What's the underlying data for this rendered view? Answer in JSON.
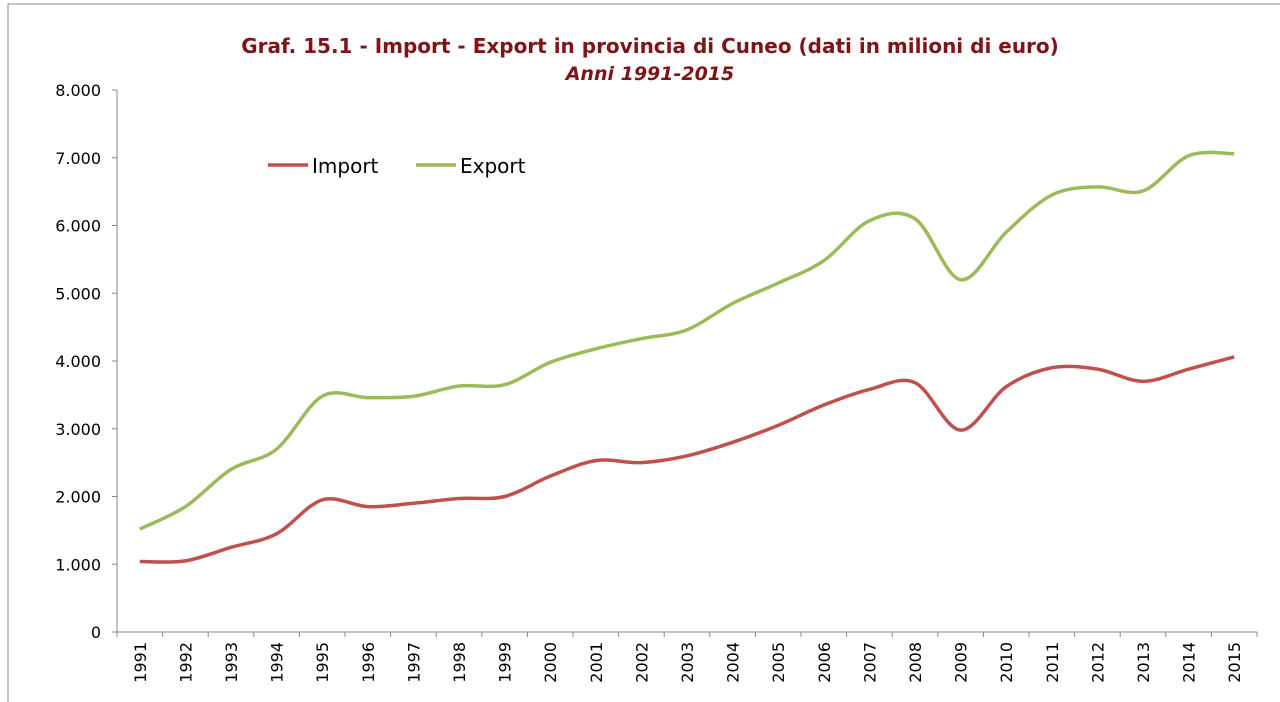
{
  "chart_data": {
    "type": "line",
    "title": "Graf. 15.1 - Import - Export in provincia di Cuneo (dati in milioni di euro)",
    "subtitle": "Anni 1991-2015",
    "categories": [
      "1991",
      "1992",
      "1993",
      "1994",
      "1995",
      "1996",
      "1997",
      "1998",
      "1999",
      "2000",
      "2001",
      "2002",
      "2003",
      "2004",
      "2005",
      "2006",
      "2007",
      "2008",
      "2009",
      "2010",
      "2011",
      "2012",
      "2013",
      "2014",
      "2015"
    ],
    "series": [
      {
        "name": "Import",
        "color": "#c0504d",
        "values": [
          1040,
          1050,
          1250,
          1450,
          1950,
          1850,
          1900,
          1970,
          2000,
          2300,
          2530,
          2500,
          2600,
          2800,
          3050,
          3350,
          3580,
          3680,
          2980,
          3620,
          3900,
          3880,
          3700,
          3880,
          4060
        ]
      },
      {
        "name": "Export",
        "color": "#9bbb59",
        "values": [
          1520,
          1850,
          2400,
          2700,
          3480,
          3460,
          3480,
          3630,
          3650,
          3980,
          4180,
          4330,
          4460,
          4850,
          5150,
          5480,
          6070,
          6100,
          5200,
          5900,
          6450,
          6570,
          6510,
          7030,
          7060
        ]
      }
    ],
    "ylim": [
      0,
      8000
    ],
    "yticks": [
      0,
      {
        "value": 1000,
        "label": "1.000"
      },
      {
        "value": 2000,
        "label": "2.000"
      },
      {
        "value": 3000,
        "label": "3.000"
      },
      {
        "value": 4000,
        "label": "4.000"
      },
      {
        "value": 5000,
        "label": "5.000"
      },
      {
        "value": 6000,
        "label": "6.000"
      },
      {
        "value": 7000,
        "label": "7.000"
      },
      {
        "value": 8000,
        "label": "8.000"
      }
    ],
    "legend": "upper left"
  }
}
